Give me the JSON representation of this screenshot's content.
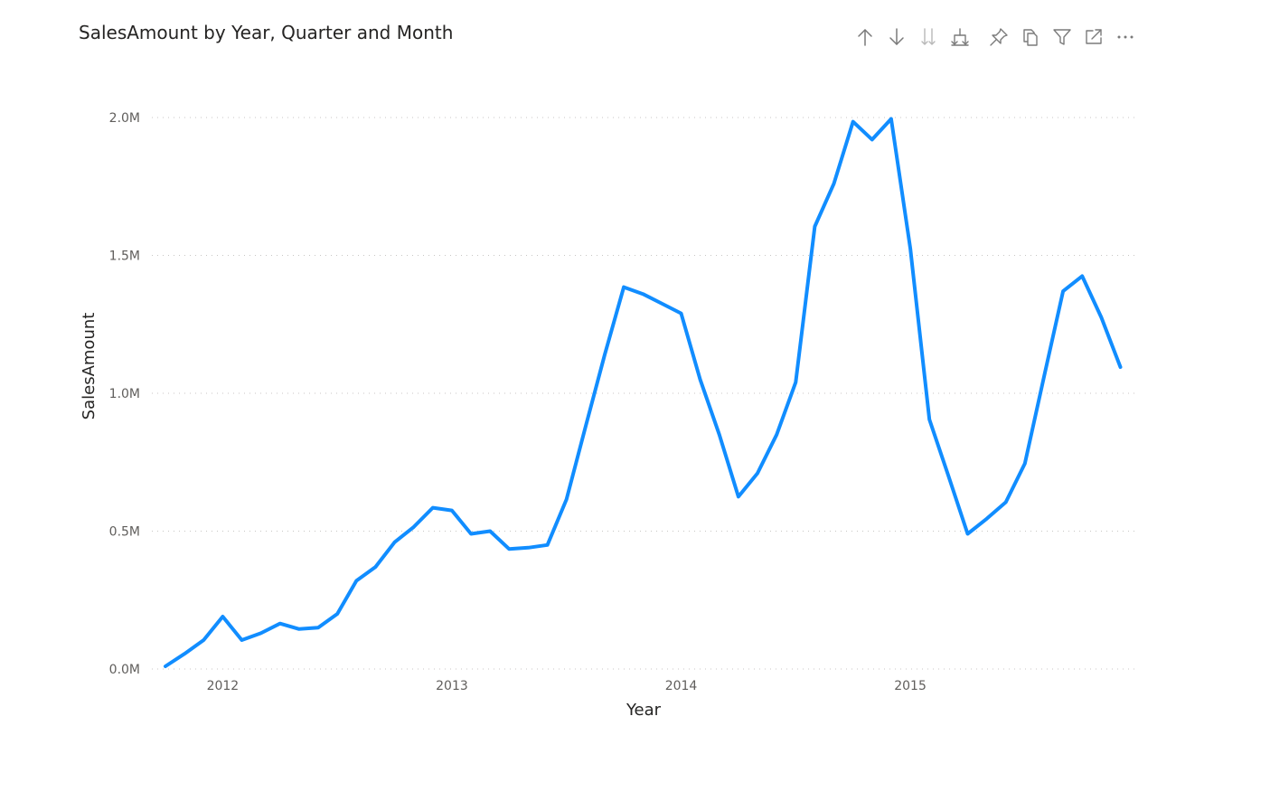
{
  "visual": {
    "title": "SalesAmount by Year, Quarter and Month",
    "toolbar": [
      {
        "name": "drill-up-icon",
        "icon": "arrow-up"
      },
      {
        "name": "drill-down-icon",
        "icon": "arrow-down"
      },
      {
        "name": "go-to-next-level-icon",
        "icon": "double-arrow-down"
      },
      {
        "name": "expand-all-down-icon",
        "icon": "fork-down"
      },
      {
        "name": "pin-visual-icon",
        "icon": "pin"
      },
      {
        "name": "copy-visual-icon",
        "icon": "copy"
      },
      {
        "name": "filter-icon",
        "icon": "funnel"
      },
      {
        "name": "focus-mode-icon",
        "icon": "expand"
      },
      {
        "name": "more-options-icon",
        "icon": "ellipsis"
      }
    ]
  },
  "chart_data": {
    "type": "line",
    "title": "SalesAmount by Year, Quarter and Month",
    "xlabel": "Year",
    "ylabel": "SalesAmount",
    "x_tick_labels": [
      "2012",
      "2013",
      "2014",
      "2015"
    ],
    "y_tick_labels": [
      "0.0M",
      "0.5M",
      "1.0M",
      "1.5M",
      "2.0M"
    ],
    "y_ticks": [
      0,
      500000,
      1000000,
      1500000,
      2000000
    ],
    "ylim": [
      0,
      2000000
    ],
    "x": [
      "2011-10",
      "2011-11",
      "2011-12",
      "2012-01",
      "2012-02",
      "2012-03",
      "2012-04",
      "2012-05",
      "2012-06",
      "2012-07",
      "2012-08",
      "2012-09",
      "2012-10",
      "2012-11",
      "2012-12",
      "2013-01",
      "2013-02",
      "2013-03",
      "2013-04",
      "2013-05",
      "2013-06",
      "2013-07",
      "2013-08",
      "2013-09",
      "2013-10",
      "2013-11",
      "2013-12",
      "2014-01",
      "2014-02",
      "2014-03",
      "2014-04",
      "2014-05",
      "2014-06",
      "2014-07",
      "2014-08",
      "2014-09",
      "2014-10",
      "2014-11",
      "2014-12",
      "2015-01",
      "2015-02",
      "2015-03",
      "2015-04",
      "2015-05",
      "2015-06",
      "2015-07",
      "2015-08",
      "2015-09",
      "2015-10",
      "2015-11",
      "2015-12"
    ],
    "series": [
      {
        "color": "#118DFF",
        "values": [
          10000,
          55000,
          105000,
          190000,
          105000,
          130000,
          165000,
          145000,
          150000,
          200000,
          320000,
          370000,
          460000,
          515000,
          585000,
          575000,
          490000,
          500000,
          435000,
          440000,
          450000,
          615000,
          880000,
          1140000,
          1385000,
          1360000,
          1325000,
          1290000,
          1050000,
          850000,
          625000,
          710000,
          850000,
          1040000,
          1605000,
          1760000,
          1985000,
          1920000,
          1995000,
          1525000,
          905000,
          700000,
          490000,
          545000,
          605000,
          745000,
          1060000,
          1370000,
          1425000,
          1275000,
          1095000
        ]
      }
    ],
    "gridlines": "horizontal-dotted",
    "legend": "none"
  }
}
